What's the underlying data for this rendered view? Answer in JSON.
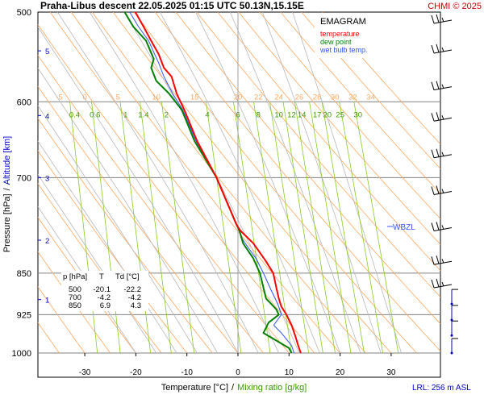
{
  "header": {
    "title": "Praha-Libus   descent   22.05.2025 01:15 UTC   50.13N,15.15E",
    "copyright": "CHMI © 2025"
  },
  "legend": {
    "title": "EMAGRAM",
    "items": [
      {
        "label": "temperature",
        "color": "#ff0000"
      },
      {
        "label": "dew point",
        "color": "#008000"
      },
      {
        "label": "wet bulb temp.",
        "color": "#3355ff"
      }
    ]
  },
  "axes": {
    "ylabel_pressure": "Pressure [hPa]",
    "ylabel_sep": "/",
    "ylabel_altitude": "Altitude [km]",
    "xlabel_temp": "Temperature [°C]",
    "xlabel_sep": "/",
    "xlabel_mix": "Mixing ratio [g/kg]"
  },
  "info_table": {
    "headers": [
      "p [hPa]",
      "T",
      "Td [°C]"
    ],
    "rows": [
      [
        "500",
        "-20.1",
        "-22.2"
      ],
      [
        "700",
        "-4.2",
        "-4.2"
      ],
      [
        "850",
        "6.9",
        "4.3"
      ]
    ]
  },
  "wbzl_label": "WBZL",
  "lrl_label": "LRL: 256 m ASL",
  "colors": {
    "temperature": "#ff0000",
    "dewpoint": "#008000",
    "wetbulb": "#3355ff",
    "dry_adiabat": "#ffa860",
    "moist_adiabat": "#b8b8b8",
    "mixing_ratio": "#88cc22",
    "altitude": "#0000cc",
    "isobar": "#808080"
  },
  "chart_data": {
    "type": "line",
    "x_unit": "°C",
    "y_unit": "hPa",
    "y_scale": "log",
    "xlim": [
      -40,
      40
    ],
    "ylim": [
      1000,
      500
    ],
    "x_ticks": [
      -30,
      -20,
      -10,
      0,
      10,
      20,
      30
    ],
    "y_ticks": [
      500,
      600,
      700,
      850,
      925,
      1000
    ],
    "altitude_ticks": [
      {
        "label": "1",
        "pressure": 897
      },
      {
        "label": "2",
        "pressure": 795
      },
      {
        "label": "3",
        "pressure": 700
      },
      {
        "label": "4",
        "pressure": 617
      },
      {
        "label": "5",
        "pressure": 541
      }
    ],
    "dry_adiabat_labels": [
      "-5",
      "0",
      "5",
      "10",
      "15",
      "20",
      "22",
      "24",
      "26",
      "28",
      "30",
      "32",
      "34"
    ],
    "dry_adiabat_label_temps": [
      -35,
      -30,
      -23.5,
      -16,
      -8.5,
      0,
      4,
      8,
      12,
      15.5,
      19,
      22.5,
      26
    ],
    "mixing_ratio_labels": [
      "0.4",
      "0.6",
      "1",
      "1.4",
      "2",
      "4",
      "6",
      "8",
      "10",
      "12",
      "14",
      "17",
      "20",
      "25",
      "30"
    ],
    "mixing_ratio_label_temps": [
      -32,
      -28,
      -22,
      -18.5,
      -14,
      -6,
      0,
      4,
      8,
      10.5,
      12.5,
      15.5,
      17.5,
      20,
      23.5
    ],
    "series": [
      {
        "name": "temperature",
        "x": [
          12.3,
          11.8,
          11.2,
          10.5,
          9.5,
          8.5,
          8.0,
          7.5,
          6.9,
          5.5,
          3.0,
          0.5,
          -0.3,
          -4.2,
          -8.0,
          -10.5,
          -12.0,
          -13.0,
          -14.5,
          -15.5,
          -17.0,
          -18.5,
          -20.1,
          -21.0
        ],
        "y": [
          1000,
          985,
          965,
          945,
          925,
          910,
          895,
          875,
          850,
          830,
          800,
          780,
          770,
          700,
          650,
          610,
          590,
          570,
          560,
          545,
          530,
          515,
          500,
          498
        ]
      },
      {
        "name": "dew point",
        "x": [
          10.5,
          10.0,
          7.5,
          5.0,
          6.0,
          8.0,
          7.5,
          5.5,
          4.3,
          3.0,
          1.0,
          0.3,
          -0.3,
          -4.2,
          -8.5,
          -11.0,
          -13.5,
          -16.0,
          -17.0,
          -16.5,
          -18.0,
          -20.5,
          -22.2,
          -22.5
        ],
        "y": [
          1000,
          990,
          975,
          960,
          940,
          925,
          915,
          895,
          850,
          825,
          800,
          780,
          770,
          700,
          650,
          610,
          590,
          575,
          560,
          550,
          530,
          515,
          500,
          498
        ]
      },
      {
        "name": "wet bulb temp.",
        "x": [
          11.0,
          10.5,
          8.5,
          7.0,
          8.5,
          7.8,
          6.5,
          5.0,
          3.5,
          1.0,
          -0.3,
          -4.2,
          -8.2,
          -10.8,
          -12.8,
          -14.5,
          -15.5,
          -17.5,
          -19.5,
          -21.2
        ],
        "y": [
          1000,
          985,
          960,
          945,
          925,
          905,
          880,
          850,
          825,
          795,
          770,
          700,
          650,
          610,
          590,
          570,
          555,
          530,
          515,
          500
        ]
      }
    ],
    "wind_barbs": [
      {
        "pressure": 500
      },
      {
        "pressure": 540
      },
      {
        "pressure": 582
      },
      {
        "pressure": 620
      },
      {
        "pressure": 668
      },
      {
        "pressure": 720
      },
      {
        "pressure": 775
      },
      {
        "pressure": 830
      },
      {
        "pressure": 870
      },
      {
        "pressure": 905
      },
      {
        "pressure": 935
      },
      {
        "pressure": 965
      },
      {
        "pressure": 1000
      }
    ]
  }
}
